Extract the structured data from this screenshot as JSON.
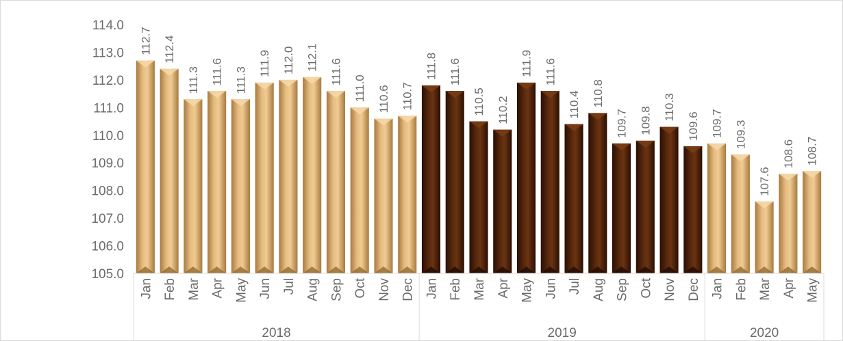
{
  "chart_data": {
    "type": "bar",
    "title": "",
    "xlabel": "",
    "ylabel": "",
    "ylim": [
      105.0,
      114.0
    ],
    "yticks": [
      "105.0",
      "106.0",
      "107.0",
      "108.0",
      "109.0",
      "110.0",
      "111.0",
      "112.0",
      "113.0",
      "114.0"
    ],
    "grid": false,
    "legend": "none",
    "groups": [
      {
        "year": "2018",
        "months": [
          "Jan",
          "Feb",
          "Mar",
          "Apr",
          "May",
          "Jun",
          "Jul",
          "Aug",
          "Sep",
          "Oct",
          "Nov",
          "Dec"
        ]
      },
      {
        "year": "2019",
        "months": [
          "Jan",
          "Feb",
          "Mar",
          "Apr",
          "May",
          "Jun",
          "Jul",
          "Aug",
          "Sep",
          "Oct",
          "Nov",
          "Dec"
        ]
      },
      {
        "year": "2020",
        "months": [
          "Jan",
          "Feb",
          "Mar",
          "Apr",
          "May"
        ]
      }
    ],
    "categories": [
      "Jan",
      "Feb",
      "Mar",
      "Apr",
      "May",
      "Jun",
      "Jul",
      "Aug",
      "Sep",
      "Oct",
      "Nov",
      "Dec",
      "Jan",
      "Feb",
      "Mar",
      "Apr",
      "May",
      "Jun",
      "Jul",
      "Aug",
      "Sep",
      "Oct",
      "Nov",
      "Dec",
      "Jan",
      "Feb",
      "Mar",
      "Apr",
      "May"
    ],
    "values": [
      112.7,
      112.4,
      111.3,
      111.6,
      111.3,
      111.9,
      112.0,
      112.1,
      111.6,
      111.0,
      110.6,
      110.7,
      111.8,
      111.6,
      110.5,
      110.2,
      111.9,
      111.6,
      110.4,
      110.8,
      109.7,
      109.8,
      110.3,
      109.6,
      109.7,
      109.3,
      107.6,
      108.6,
      108.7
    ],
    "value_labels": [
      "112.7",
      "112.4",
      "111.3",
      "111.6",
      "111.3",
      "111.9",
      "112.0",
      "112.1",
      "111.6",
      "111.0",
      "110.6",
      "110.7",
      "111.8",
      "111.6",
      "110.5",
      "110.2",
      "111.9",
      "111.6",
      "110.4",
      "110.8",
      "109.7",
      "109.8",
      "110.3",
      "109.6",
      "109.7",
      "109.3",
      "107.6",
      "108.6",
      "108.7"
    ],
    "colors": {
      "2018": "#d9a86b",
      "2019": "#4a2008",
      "2020": "#d9a86b"
    }
  }
}
